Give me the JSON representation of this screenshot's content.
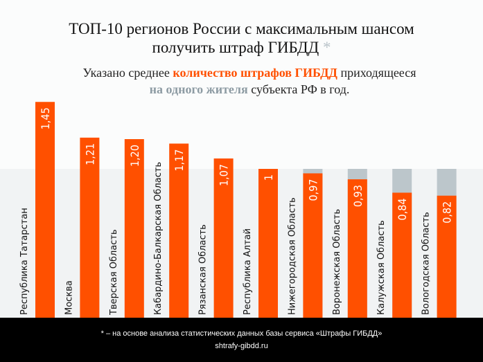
{
  "title_line1": "ТОП-10 регионов России с максимальным шансом",
  "title_line2": "получить штраф ГИБДД",
  "title_asterisk": "*",
  "subtitle": {
    "part1": "Указано среднее ",
    "highlight1": "количество штрафов ГИБДД",
    "part2": " приходящееся",
    "highlight2": "на одного жителя",
    "part3": " субъекта РФ в год."
  },
  "footer": {
    "note": "* –  на основе анализа статистических данных базы сервиса «Штрафы ГИБДД»",
    "site": "shtrafy-gibdd.ru"
  },
  "colors": {
    "bar": "#ff5000",
    "remainder": "#bcc6cb",
    "highlight_gray": "#8d9ba3"
  },
  "chart_data": {
    "type": "bar",
    "orientation": "vertical",
    "categories": [
      "Республика Татарстан",
      "Москва",
      "Тверская Область",
      "Кабардино-Балкарская Область",
      "Рязанская Область",
      "Республика Алтай",
      "Нижегородская Область",
      "Воронежская Область",
      "Калужская Область",
      "Вологодская Область"
    ],
    "values": [
      1.45,
      1.21,
      1.2,
      1.17,
      1.07,
      1,
      0.97,
      0.93,
      0.84,
      0.82
    ],
    "value_labels": [
      "1,45",
      "1,21",
      "1,20",
      "1,17",
      "1,07",
      "1",
      "0,97",
      "0,93",
      "0,84",
      "0,82"
    ],
    "reference_value": 1,
    "ylim": [
      0,
      1.45
    ],
    "grid": false
  }
}
